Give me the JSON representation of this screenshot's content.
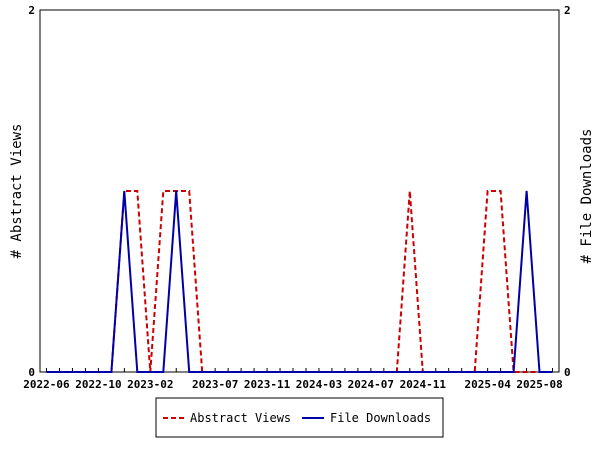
{
  "chart_data": {
    "type": "line",
    "x": [
      "2022-06",
      "2022-07",
      "2022-08",
      "2022-09",
      "2022-10",
      "2022-11",
      "2022-12",
      "2023-01",
      "2023-02",
      "2023-03",
      "2023-04",
      "2023-05",
      "2023-06",
      "2023-07",
      "2023-08",
      "2023-09",
      "2023-10",
      "2023-11",
      "2023-12",
      "2024-01",
      "2024-02",
      "2024-03",
      "2024-04",
      "2024-05",
      "2024-06",
      "2024-07",
      "2024-08",
      "2024-09",
      "2024-10",
      "2024-11",
      "2024-12",
      "2025-01",
      "2025-02",
      "2025-03",
      "2025-04",
      "2025-05",
      "2025-06",
      "2025-07",
      "2025-08",
      "2025-09"
    ],
    "x_tick_labels": [
      "2022-06",
      "2022-10",
      "2023-02",
      "2023-07",
      "2023-11",
      "2024-03",
      "2024-07",
      "2024-11",
      "2025-04",
      "2025-08"
    ],
    "series": [
      {
        "name": "Abstract Views",
        "color": "#cc0000",
        "style": "dashed",
        "axis": "left",
        "values": [
          0,
          0,
          0,
          0,
          0,
          0,
          1,
          1,
          0,
          1,
          1,
          1,
          0,
          0,
          0,
          0,
          0,
          0,
          0,
          0,
          0,
          0,
          0,
          0,
          0,
          0,
          0,
          0,
          1,
          0,
          0,
          0,
          0,
          0,
          1,
          1,
          0,
          0,
          0,
          0
        ]
      },
      {
        "name": "File Downloads",
        "color": "#0000aa",
        "style": "solid",
        "axis": "right",
        "values": [
          0,
          0,
          0,
          0,
          0,
          0,
          1,
          0,
          0,
          0,
          1,
          0,
          0,
          0,
          0,
          0,
          0,
          0,
          0,
          0,
          0,
          0,
          0,
          0,
          0,
          0,
          0,
          0,
          0,
          0,
          0,
          0,
          0,
          0,
          0,
          0,
          0,
          1,
          0,
          0
        ]
      }
    ],
    "ylabel_left": "# Abstract Views",
    "ylabel_right": "# File Downloads",
    "ylim": [
      0,
      2
    ],
    "y_ticks": [
      "0",
      "2"
    ],
    "legend_placement": "bottom-center"
  }
}
